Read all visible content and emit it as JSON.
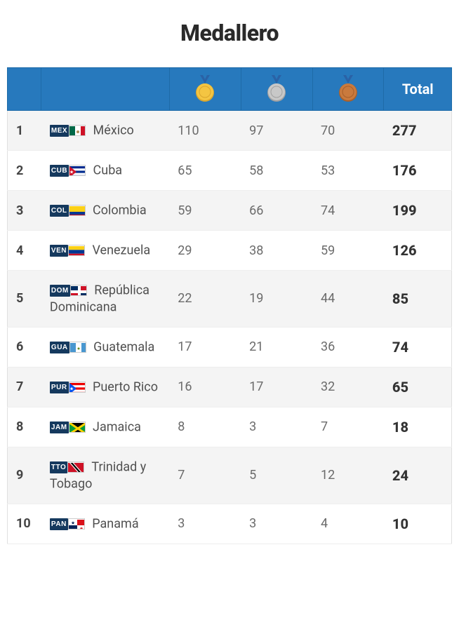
{
  "title": "Medallero",
  "header": {
    "total_label": "Total",
    "header_bg": "#2779bd",
    "header_text_color": "#ffffff"
  },
  "medals": {
    "gold_color": "#f4c542",
    "gold_shade": "#d9a62e",
    "silver_color": "#c8c8c8",
    "silver_shade": "#a0a0a0",
    "bronze_color": "#c97a3d",
    "bronze_shade": "#a85f2a",
    "ribbon_color": "#2a62a6"
  },
  "rows": [
    {
      "rank": "1",
      "code": "MEX",
      "country": "México",
      "gold": "110",
      "silver": "97",
      "bronze": "70",
      "total": "277",
      "flag_svg": "<rect width='24' height='16' fill='#fff'/><rect width='8' height='16' fill='#006847'/><rect x='16' width='8' height='16' fill='#ce1126'/><circle cx='12' cy='8' r='2' fill='#b08d57'/>"
    },
    {
      "rank": "2",
      "code": "CUB",
      "country": "Cuba",
      "gold": "65",
      "silver": "58",
      "bronze": "53",
      "total": "176",
      "flag_svg": "<rect width='24' height='16' fill='#002a8f'/><rect y='3.2' width='24' height='3.2' fill='#fff'/><rect y='9.6' width='24' height='3.2' fill='#fff'/><polygon points='0,0 10,8 0,16' fill='#cf142b'/><polygon points='3,5.5 3.7,7.4 5.7,7.4 4.1,8.6 4.7,10.5 3,9.4 1.3,10.5 1.9,8.6 0.3,7.4 2.3,7.4' fill='#fff'/>"
    },
    {
      "rank": "3",
      "code": "COL",
      "country": "Colombia",
      "gold": "59",
      "silver": "66",
      "bronze": "74",
      "total": "199",
      "flag_svg": "<rect width='24' height='8' fill='#fcd116'/><rect y='8' width='24' height='4' fill='#003893'/><rect y='12' width='24' height='4' fill='#ce1126'/>"
    },
    {
      "rank": "4",
      "code": "VEN",
      "country": "Venezuela",
      "gold": "29",
      "silver": "38",
      "bronze": "59",
      "total": "126",
      "flag_svg": "<rect width='24' height='5.33' fill='#fcd116'/><rect y='5.33' width='24' height='5.33' fill='#003893'/><rect y='10.66' width='24' height='5.34' fill='#ce1126'/>"
    },
    {
      "rank": "5",
      "code": "DOM",
      "country": "República Dominicana",
      "gold": "22",
      "silver": "19",
      "bronze": "44",
      "total": "85",
      "flag_svg": "<rect width='24' height='16' fill='#fff'/><rect width='10' height='6' fill='#002d62'/><rect x='14' width='10' height='6' fill='#ce1126'/><rect y='10' width='10' height='6' fill='#ce1126'/><rect x='14' y='10' width='10' height='6' fill='#002d62'/>"
    },
    {
      "rank": "6",
      "code": "GUA",
      "country": "Guatemala",
      "gold": "17",
      "silver": "21",
      "bronze": "36",
      "total": "74",
      "flag_svg": "<rect width='24' height='16' fill='#fff'/><rect width='8' height='16' fill='#4997d0'/><rect x='16' width='8' height='16' fill='#4997d0'/><circle cx='12' cy='8' r='1.5' fill='#6b8e23'/>"
    },
    {
      "rank": "7",
      "code": "PUR",
      "country": "Puerto Rico",
      "gold": "16",
      "silver": "17",
      "bronze": "32",
      "total": "65",
      "flag_svg": "<rect width='24' height='16' fill='#ed0000'/><rect y='3.2' width='24' height='3.2' fill='#fff'/><rect y='9.6' width='24' height='3.2' fill='#fff'/><polygon points='0,0 10,8 0,16' fill='#0050f0'/><polygon points='3,5.5 3.7,7.4 5.7,7.4 4.1,8.6 4.7,10.5 3,9.4 1.3,10.5 1.9,8.6 0.3,7.4 2.3,7.4' fill='#fff'/>"
    },
    {
      "rank": "8",
      "code": "JAM",
      "country": "Jamaica",
      "gold": "8",
      "silver": "3",
      "bronze": "7",
      "total": "18",
      "flag_svg": "<rect width='24' height='16' fill='#009b3a'/><polygon points='0,0 24,0 12,8' fill='#000'/><polygon points='0,16 24,16 12,8' fill='#000'/><line x1='0' y1='0' x2='24' y2='16' stroke='#fed100' stroke-width='3'/><line x1='24' y1='0' x2='0' y2='16' stroke='#fed100' stroke-width='3'/>"
    },
    {
      "rank": "9",
      "code": "TTO",
      "country": "Trinidad y Tobago",
      "gold": "7",
      "silver": "5",
      "bronze": "12",
      "total": "24",
      "flag_svg": "<rect width='24' height='16' fill='#ce1126'/><polygon points='2,0 8,0 22,16 16,16' fill='#fff'/><polygon points='3.5,0 6.5,0 20.5,16 17.5,16' fill='#000'/>"
    },
    {
      "rank": "10",
      "code": "PAN",
      "country": "Panamá",
      "gold": "3",
      "silver": "3",
      "bronze": "4",
      "total": "10",
      "flag_svg": "<rect width='24' height='16' fill='#fff'/><rect x='12' width='12' height='8' fill='#da121a'/><rect y='8' width='12' height='8' fill='#072357'/><polygon points='6,2 6.6,3.8 8.5,3.8 7,5 7.5,6.8 6,5.7 4.5,6.8 5,5 3.5,3.8 5.4,3.8' fill='#072357'/><polygon points='18,10 18.6,11.8 20.5,11.8 19,13 19.5,14.8 18,13.7 16.5,14.8 17,13 15.5,11.8 17.4,11.8' fill='#da121a'/>"
    }
  ]
}
